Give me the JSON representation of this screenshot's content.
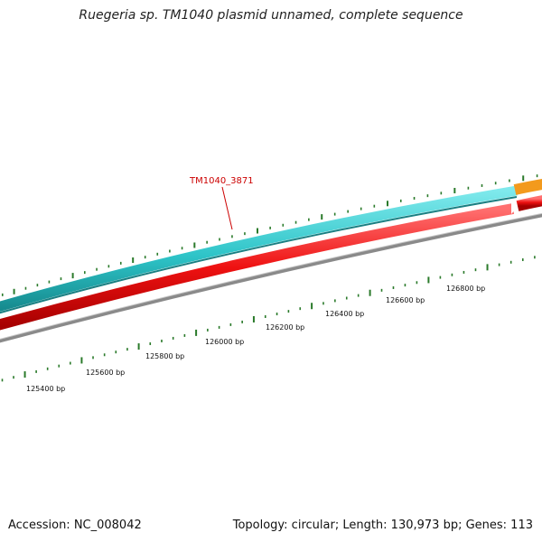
{
  "map": {
    "title": "Ruegeria sp. TM1040 plasmid unnamed, complete sequence",
    "accession_text": "Accession: NC_008042",
    "summary_text": "Topology: circular; Length: 130,973 bp; Genes: 113",
    "accession": "NC_008042",
    "topology": "circular",
    "length_bp": 130973,
    "gene_count": 113
  },
  "sequence_ruler": {
    "labels": [
      "125400 bp",
      "125600 bp",
      "125800 bp",
      "126000 bp",
      "126200 bp",
      "126400 bp",
      "126600 bp",
      "126800 bp"
    ],
    "positions_bp": [
      125400,
      125600,
      125800,
      126000,
      126200,
      126400,
      126600,
      126800
    ],
    "tick_color": "#2a7a2a"
  },
  "gene_label": {
    "text": "TM1040_3871",
    "color": "#cc0000"
  },
  "tracks": [
    {
      "name": "cyan-feature-track",
      "color": "#2ec4c8"
    },
    {
      "name": "orange-feature-segment",
      "color": "#f39a1d"
    },
    {
      "name": "red-cds-track",
      "color": "#ee1111"
    },
    {
      "name": "grey-backbone-track",
      "color": "#888888"
    }
  ]
}
